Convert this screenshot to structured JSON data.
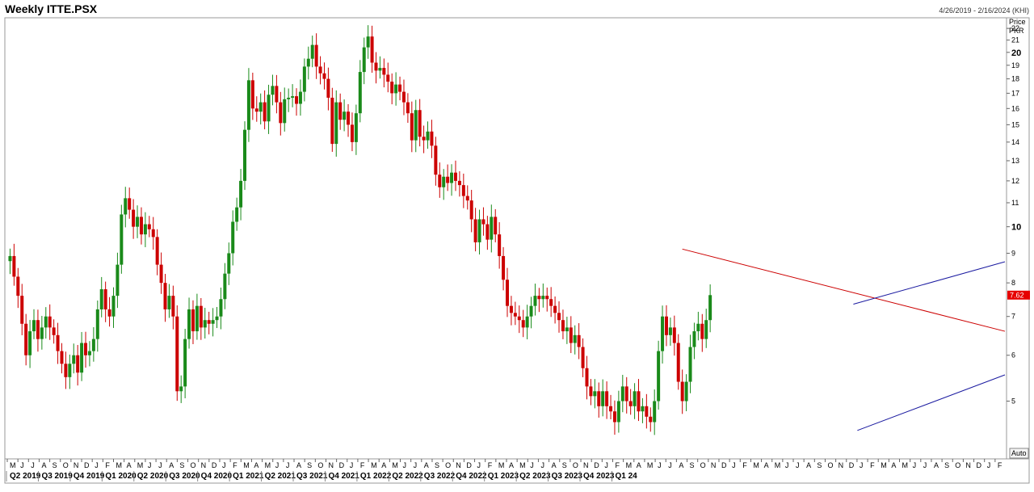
{
  "header": {
    "title": "Weekly ITTE.PSX",
    "date_range": "4/26/2019 - 2/16/2024 (KHI)"
  },
  "axis": {
    "price_label_1": "Price",
    "price_label_2": "PKR",
    "auto_label": "Auto",
    "last_price_label": "7.62"
  },
  "colors": {
    "up": "#1a8a1a",
    "down": "#cc0000",
    "upper_channel": "#1a1aa0",
    "resistance": "#cc0000",
    "last_price_bg": "#e60000"
  },
  "chart_data": {
    "type": "candlestick",
    "title": "Weekly ITTE.PSX",
    "ylabel": "Price PKR",
    "ylim": [
      4,
      22.8
    ],
    "y_ticks": [
      5,
      6,
      7,
      8,
      9,
      10,
      11,
      12,
      13,
      14,
      15,
      16,
      17,
      18,
      19,
      20,
      21,
      22
    ],
    "y_ticks_bold": [
      10,
      20
    ],
    "month_labels": [
      "M",
      "J",
      "J",
      "A",
      "S",
      "O",
      "N",
      "D",
      "J",
      "F",
      "M",
      "A",
      "M",
      "J",
      "J",
      "A",
      "S",
      "O",
      "N",
      "D",
      "J",
      "F",
      "M",
      "A",
      "M",
      "J",
      "J",
      "A",
      "S",
      "O",
      "N",
      "D",
      "J",
      "F",
      "M",
      "A",
      "M",
      "J",
      "J",
      "A",
      "S",
      "O",
      "N",
      "D",
      "J",
      "F",
      "M",
      "A",
      "M",
      "J",
      "J",
      "A",
      "S",
      "O",
      "N",
      "D",
      "J",
      "F",
      "M",
      "A",
      "M",
      "J",
      "J",
      "A",
      "S",
      "O",
      "N",
      "D",
      "J",
      "F",
      "M",
      "A",
      "M",
      "J",
      "J",
      "A",
      "S",
      "O",
      "N",
      "D",
      "J",
      "F",
      "M",
      "A",
      "M",
      "J",
      "J",
      "A",
      "S",
      "O",
      "N",
      "D",
      "J",
      "F"
    ],
    "quarter_labels": [
      "Q2 2019",
      "Q3 2019",
      "Q4 2019",
      "Q1 2020",
      "Q2 2020",
      "Q3 2020",
      "Q4 2020",
      "Q1 2021",
      "Q2 2021",
      "Q3 2021",
      "Q4 2021",
      "Q1 2022",
      "Q2 2022",
      "Q3 2022",
      "Q4 2022",
      "Q1 2023",
      "Q2 2023",
      "Q3 2023",
      "Q4 2023",
      "Q1 24"
    ],
    "last_price": 7.62,
    "path": [
      8.9,
      8.2,
      7.6,
      6.8,
      6.0,
      6.6,
      6.9,
      6.4,
      6.7,
      7.0,
      6.7,
      6.5,
      6.1,
      5.8,
      5.5,
      5.8,
      6.0,
      5.6,
      6.3,
      6.0,
      6.1,
      6.4,
      7.2,
      7.8,
      7.2,
      7.0,
      7.6,
      8.6,
      10.5,
      11.2,
      10.7,
      10.0,
      10.4,
      9.7,
      10.1,
      9.9,
      9.6,
      8.6,
      8.0,
      7.2,
      7.6,
      7.0,
      5.2,
      5.3,
      6.4,
      7.2,
      6.6,
      7.3,
      6.7,
      6.9,
      6.8,
      6.9,
      7.0,
      7.5,
      8.3,
      9.0,
      10.2,
      10.8,
      12.0,
      14.7,
      17.9,
      16.0,
      15.8,
      16.4,
      15.2,
      16.9,
      17.5,
      16.4,
      15.1,
      16.6,
      16.7,
      16.8,
      16.3,
      17.1,
      18.9,
      19.5,
      20.6,
      18.9,
      18.4,
      18.0,
      16.7,
      13.9,
      16.4,
      15.3,
      15.8,
      15.0,
      14.0,
      15.7,
      18.5,
      20.4,
      21.3,
      19.2,
      18.6,
      18.8,
      18.3,
      17.8,
      17.0,
      17.6,
      17.1,
      16.4,
      15.7,
      14.1,
      15.9,
      14.3,
      14.1,
      14.6,
      13.8,
      12.3,
      11.7,
      12.2,
      11.9,
      12.4,
      12.0,
      11.8,
      11.3,
      11.1,
      10.3,
      9.4,
      10.3,
      10.1,
      9.5,
      10.4,
      9.7,
      8.9,
      8.1,
      7.3,
      7.1,
      7.0,
      6.9,
      6.7,
      7.0,
      7.3,
      7.6,
      7.5,
      7.6,
      7.5,
      7.3,
      7.1,
      6.9,
      6.6,
      6.7,
      6.3,
      6.5,
      6.2,
      5.7,
      5.3,
      5.1,
      5.2,
      4.9,
      5.2,
      4.9,
      4.8,
      4.6,
      5.0,
      5.3,
      5.0,
      4.9,
      5.2,
      4.8,
      4.9,
      4.7,
      4.6,
      5.0,
      6.1,
      7.0,
      6.5,
      6.7,
      6.3,
      5.4,
      5.0,
      5.4,
      6.2,
      6.6,
      6.8,
      6.4,
      6.9,
      7.62
    ]
  }
}
